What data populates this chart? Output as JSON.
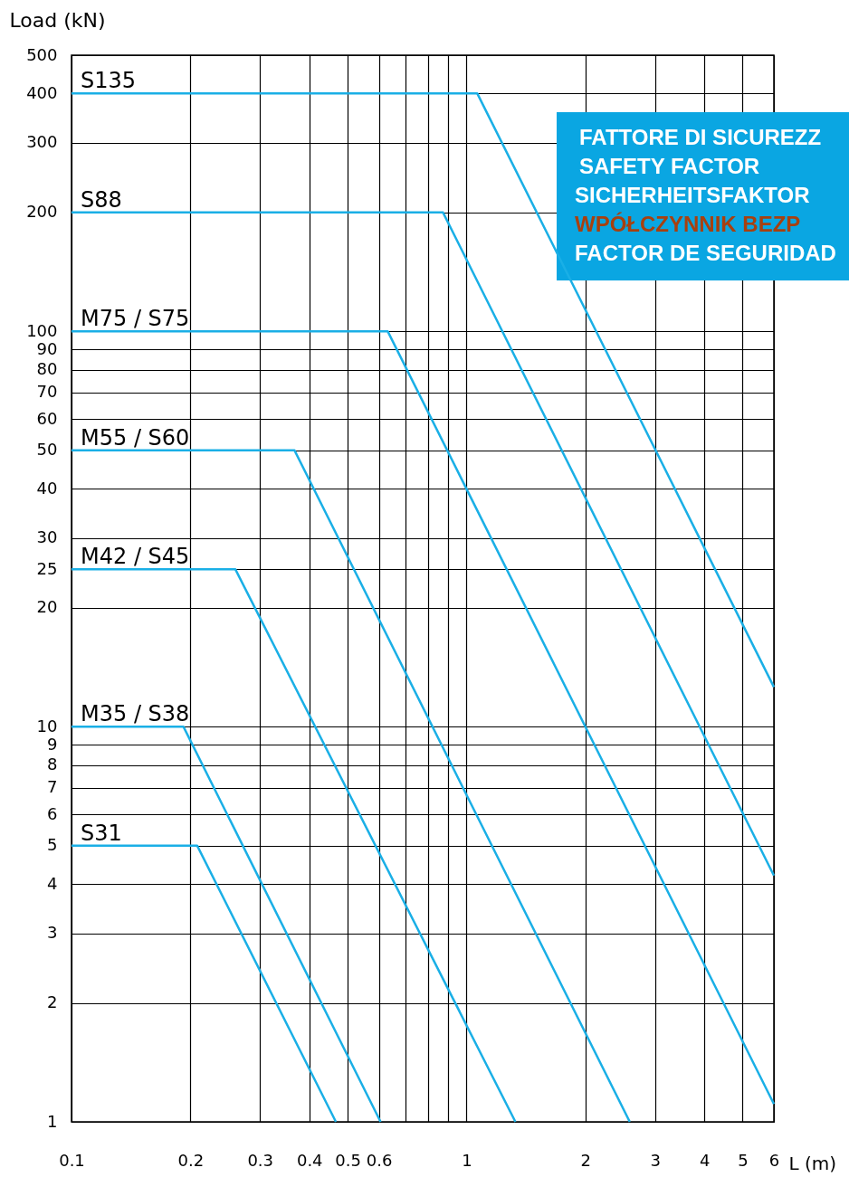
{
  "chart_data": {
    "type": "line",
    "xlabel": "L (m)",
    "ylabel": "Load (kN)",
    "log": "xy",
    "xlim": [
      0.1,
      6
    ],
    "ylim": [
      1,
      500
    ],
    "xticks": [
      0.1,
      0.2,
      0.3,
      0.4,
      0.5,
      0.6,
      {
        "value": 0.7,
        "label": null
      },
      {
        "value": 0.8,
        "label": null
      },
      {
        "value": 0.9,
        "label": null
      },
      1,
      2,
      3,
      4,
      5,
      6
    ],
    "yticks": [
      1,
      2,
      3,
      4,
      5,
      6,
      7,
      8,
      9,
      10,
      20,
      25,
      30,
      40,
      50,
      60,
      70,
      80,
      90,
      100,
      200,
      300,
      400,
      500
    ],
    "grid": true,
    "marker": "none",
    "line_style": "solid",
    "series": [
      {
        "name": "S135",
        "color": "#1aafe6",
        "x": [
          0.1,
          1.065,
          6
        ],
        "values": [
          400,
          400,
          12.6
        ]
      },
      {
        "name": "S88",
        "color": "#1aafe6",
        "x": [
          0.1,
          0.872,
          6
        ],
        "values": [
          200,
          200,
          4.2
        ]
      },
      {
        "name": "M75 / S75",
        "color": "#1aafe6",
        "x": [
          0.1,
          0.632,
          6
        ],
        "values": [
          100,
          100,
          1.11
        ]
      },
      {
        "name": "M55 / S60",
        "color": "#1aafe6",
        "x": [
          0.1,
          0.367,
          2.59
        ],
        "values": [
          50,
          50,
          1
        ]
      },
      {
        "name": "M42 / S45",
        "color": "#1aafe6",
        "x": [
          0.1,
          0.26,
          1.33
        ],
        "values": [
          25,
          25,
          1
        ]
      },
      {
        "name": "M35 / S38",
        "color": "#1aafe6",
        "x": [
          0.1,
          0.192,
          0.606
        ],
        "values": [
          10,
          10,
          1
        ]
      },
      {
        "name": "S31",
        "color": "#1aafe6",
        "x": [
          0.1,
          0.208,
          0.467
        ],
        "values": [
          5,
          5,
          1
        ]
      }
    ],
    "annotations": [
      "FATTORE DI SICUREZZ",
      "SAFETY FACTOR",
      "SICHERHEITSFAKTOR",
      "WPÓŁCZYNNIK BEZP",
      "FACTOR DE SEGURIDAD"
    ]
  }
}
